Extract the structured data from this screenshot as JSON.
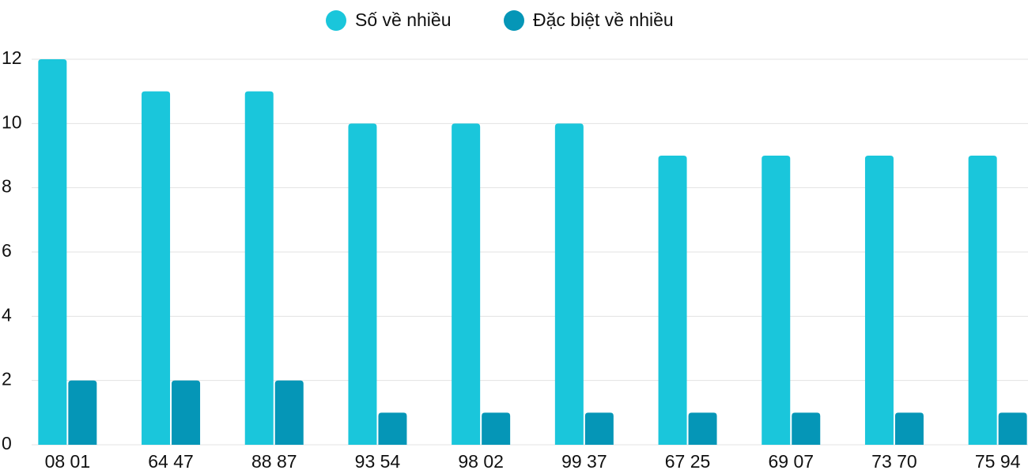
{
  "chart_data": {
    "type": "bar",
    "categories": [
      "08 01",
      "64 47",
      "88 87",
      "93 54",
      "98 02",
      "99 37",
      "67 25",
      "69 07",
      "73 70",
      "75 94"
    ],
    "series": [
      {
        "name": "Số về nhiều",
        "color": "#1ac6db",
        "values": [
          12,
          11,
          11,
          10,
          10,
          10,
          9,
          9,
          9,
          9
        ]
      },
      {
        "name": "Đặc biệt về nhiều",
        "color": "#0596b7",
        "values": [
          2,
          2,
          2,
          1,
          1,
          1,
          1,
          1,
          1,
          1
        ]
      }
    ],
    "ylim": [
      0,
      12
    ],
    "yticks": [
      0,
      2,
      4,
      6,
      8,
      10,
      12
    ],
    "grid": true,
    "legend": "top"
  }
}
